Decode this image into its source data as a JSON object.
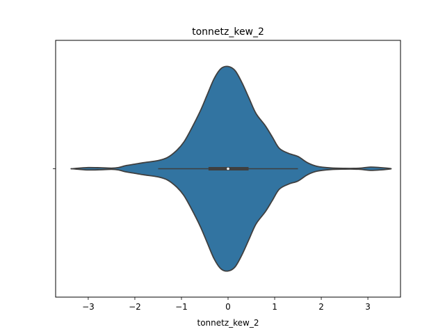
{
  "chart_data": {
    "type": "violin",
    "title": "tonnetz_kew_2",
    "xlabel": "tonnetz_kew_2",
    "ylabel": "",
    "xlim": [
      -3.7,
      3.7
    ],
    "xticks": [
      -3,
      -2,
      -1,
      0,
      1,
      2,
      3
    ],
    "xtick_labels": [
      "−3",
      "−2",
      "−1",
      "0",
      "1",
      "2",
      "3"
    ],
    "yticks": [
      0
    ],
    "ytick_labels": [
      ""
    ],
    "grid": false,
    "legend": "none",
    "fill_color": "#3274a1",
    "edge_color": "#3f3f3f",
    "density_profile": [
      {
        "x": -3.35,
        "w": 0.0
      },
      {
        "x": -3.2,
        "w": 0.006
      },
      {
        "x": -3.0,
        "w": 0.012
      },
      {
        "x": -2.75,
        "w": 0.01
      },
      {
        "x": -2.5,
        "w": 0.006
      },
      {
        "x": -2.35,
        "w": 0.012
      },
      {
        "x": -2.2,
        "w": 0.03
      },
      {
        "x": -2.0,
        "w": 0.045
      },
      {
        "x": -1.8,
        "w": 0.06
      },
      {
        "x": -1.5,
        "w": 0.08
      },
      {
        "x": -1.3,
        "w": 0.11
      },
      {
        "x": -1.1,
        "w": 0.18
      },
      {
        "x": -0.95,
        "w": 0.26
      },
      {
        "x": -0.8,
        "w": 0.38
      },
      {
        "x": -0.6,
        "w": 0.56
      },
      {
        "x": -0.45,
        "w": 0.72
      },
      {
        "x": -0.3,
        "w": 0.88
      },
      {
        "x": -0.15,
        "w": 0.98
      },
      {
        "x": 0.0,
        "w": 1.0
      },
      {
        "x": 0.15,
        "w": 0.96
      },
      {
        "x": 0.3,
        "w": 0.84
      },
      {
        "x": 0.45,
        "w": 0.69
      },
      {
        "x": 0.6,
        "w": 0.54
      },
      {
        "x": 0.8,
        "w": 0.42
      },
      {
        "x": 0.95,
        "w": 0.31
      },
      {
        "x": 1.1,
        "w": 0.2
      },
      {
        "x": 1.3,
        "w": 0.15
      },
      {
        "x": 1.5,
        "w": 0.12
      },
      {
        "x": 1.7,
        "w": 0.06
      },
      {
        "x": 1.9,
        "w": 0.025
      },
      {
        "x": 2.2,
        "w": 0.008
      },
      {
        "x": 2.5,
        "w": 0.004
      },
      {
        "x": 2.8,
        "w": 0.005
      },
      {
        "x": 3.05,
        "w": 0.016
      },
      {
        "x": 3.25,
        "w": 0.012
      },
      {
        "x": 3.45,
        "w": 0.004
      },
      {
        "x": 3.5,
        "w": 0.0
      }
    ],
    "box": {
      "q1": -0.42,
      "median": 0.0,
      "q3": 0.44,
      "whisker_low": -1.5,
      "whisker_high": 1.5
    }
  }
}
